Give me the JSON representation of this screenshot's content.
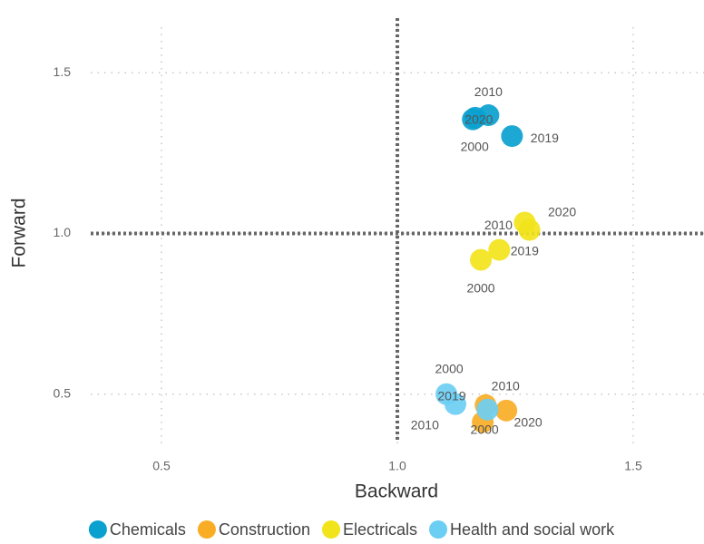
{
  "chart_data": {
    "type": "scatter",
    "x_label": "Backward",
    "y_label": "Forward",
    "xlim": [
      0.35,
      1.65
    ],
    "ylim": [
      0.33,
      1.67
    ],
    "xticks": [
      0.5,
      {
        "value": 1,
        "label": "1.0"
      },
      1.5
    ],
    "yticks": [
      0.5,
      {
        "value": 1,
        "label": "1.0"
      },
      1.5
    ],
    "grid": true,
    "reference_lines": {
      "x": 1,
      "y": 1
    },
    "legend": "bottom",
    "series": [
      {
        "name": "Chemicals",
        "color": "#0aa1cf",
        "x": [
          1.16,
          1.165,
          1.193,
          1.243
        ],
        "values": [
          1.355,
          1.36,
          1.368,
          1.303
        ],
        "labels": [
          "2000",
          "2020",
          "2010",
          "2019"
        ]
      },
      {
        "name": "Construction",
        "color": "#f9ad25",
        "x": [
          1.187,
          1.231,
          1.181
        ],
        "values": [
          0.466,
          0.449,
          0.413
        ],
        "labels": [
          "2010",
          "2020",
          "2000"
        ]
      },
      {
        "name": "Electricals",
        "color": "#f2e41b",
        "x": [
          1.177,
          1.216,
          1.27,
          1.28
        ],
        "values": [
          0.918,
          0.949,
          1.034,
          1.011
        ],
        "labels": [
          "2000",
          "2019",
          "2010",
          "2020"
        ]
      },
      {
        "name": "Health and social work",
        "color": "#6ccef3",
        "x": [
          1.104,
          1.123,
          1.191
        ],
        "values": [
          0.5,
          0.469,
          0.452
        ],
        "labels": [
          "2000",
          "2019",
          "2010"
        ]
      }
    ]
  }
}
